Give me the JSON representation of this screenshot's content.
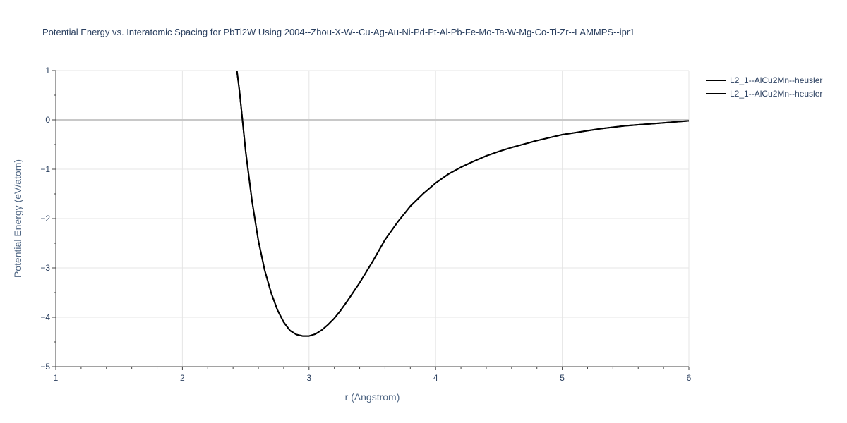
{
  "chart_data": {
    "type": "line",
    "title": "Potential Energy vs. Interatomic Spacing for PbTi2W Using 2004--Zhou-X-W--Cu-Ag-Au-Ni-Pd-Pt-Al-Pb-Fe-Mo-Ta-W-Mg-Co-Ti-Zr--LAMMPS--ipr1",
    "xlabel": "r (Angstrom)",
    "ylabel": "Potential Energy (eV/atom)",
    "xlim": [
      1,
      6
    ],
    "ylim": [
      -5,
      1
    ],
    "xticks": [
      1,
      2,
      3,
      4,
      5,
      6
    ],
    "yticks": [
      1,
      0,
      -1,
      -2,
      -3,
      -4,
      -5
    ],
    "ytick_labels": [
      "1",
      "0",
      "−1",
      "−2",
      "−3",
      "−4",
      "−5"
    ],
    "grid": true,
    "legend_position": "top-right",
    "series": [
      {
        "name": "L2_1--AlCu2Mn--heusler",
        "color": "#000000",
        "x": [
          2.43,
          2.45,
          2.5,
          2.55,
          2.6,
          2.65,
          2.7,
          2.75,
          2.8,
          2.85,
          2.9,
          2.95,
          3.0,
          3.05,
          3.1,
          3.15,
          3.2,
          3.25,
          3.3,
          3.4,
          3.5,
          3.6,
          3.7,
          3.8,
          3.9,
          4.0,
          4.1,
          4.2,
          4.3,
          4.4,
          4.5,
          4.6,
          4.7,
          4.8,
          4.9,
          5.0,
          5.1,
          5.2,
          5.3,
          5.4,
          5.5,
          5.6,
          5.7,
          5.8,
          5.9,
          6.0
        ],
        "y": [
          1.0,
          0.6,
          -0.65,
          -1.65,
          -2.45,
          -3.05,
          -3.5,
          -3.85,
          -4.1,
          -4.27,
          -4.35,
          -4.38,
          -4.38,
          -4.34,
          -4.26,
          -4.15,
          -4.02,
          -3.86,
          -3.68,
          -3.3,
          -2.88,
          -2.43,
          -2.07,
          -1.75,
          -1.5,
          -1.28,
          -1.1,
          -0.96,
          -0.84,
          -0.73,
          -0.64,
          -0.56,
          -0.49,
          -0.42,
          -0.36,
          -0.3,
          -0.26,
          -0.22,
          -0.18,
          -0.15,
          -0.12,
          -0.1,
          -0.08,
          -0.06,
          -0.04,
          -0.02
        ]
      },
      {
        "name": "L2_1--AlCu2Mn--heusler",
        "color": "#000000",
        "x": [
          2.43,
          2.45,
          2.5,
          2.55,
          2.6,
          2.65,
          2.7,
          2.75,
          2.8,
          2.85,
          2.9,
          2.95,
          3.0,
          3.05,
          3.1,
          3.15,
          3.2,
          3.25,
          3.3,
          3.4,
          3.5,
          3.6,
          3.7,
          3.8,
          3.9,
          4.0,
          4.1,
          4.2,
          4.3,
          4.4,
          4.5,
          4.6,
          4.7,
          4.8,
          4.9,
          5.0,
          5.1,
          5.2,
          5.3,
          5.4,
          5.5,
          5.6,
          5.7,
          5.8,
          5.9,
          6.0
        ],
        "y": [
          1.0,
          0.6,
          -0.65,
          -1.65,
          -2.45,
          -3.05,
          -3.5,
          -3.85,
          -4.1,
          -4.27,
          -4.35,
          -4.38,
          -4.38,
          -4.34,
          -4.26,
          -4.15,
          -4.02,
          -3.86,
          -3.68,
          -3.3,
          -2.88,
          -2.43,
          -2.07,
          -1.75,
          -1.5,
          -1.28,
          -1.1,
          -0.96,
          -0.84,
          -0.73,
          -0.64,
          -0.56,
          -0.49,
          -0.42,
          -0.36,
          -0.3,
          -0.26,
          -0.22,
          -0.18,
          -0.15,
          -0.12,
          -0.1,
          -0.08,
          -0.06,
          -0.04,
          -0.02
        ]
      }
    ]
  }
}
